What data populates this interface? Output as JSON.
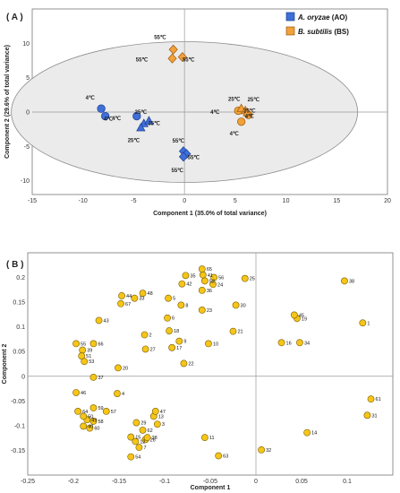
{
  "colors": {
    "ao": "#3f6fd8",
    "ao_stroke": "#1d3f95",
    "bs": "#f2a03a",
    "bs_stroke": "#9a5a12",
    "pt": "#f5c518",
    "pt_stroke": "#7a5c00",
    "ellipse_fill": "#ebebeb"
  },
  "chart_data": [
    {
      "panel": "( A )",
      "type": "scatter",
      "xlabel": "Component 1 (35.0% of total variance)",
      "ylabel": "Component 2 (29.6% of total variance)",
      "xlim": [
        -15,
        20
      ],
      "ylim": [
        -12,
        15
      ],
      "xticks": [
        -15,
        -10,
        -5,
        0,
        5,
        10,
        15,
        20
      ],
      "yticks": [
        -10,
        -5,
        0,
        5,
        10
      ],
      "legend": [
        {
          "code": "ao",
          "species": "A. oryzae",
          "abbr": " (AO)"
        },
        {
          "code": "bs",
          "species": "B. subtilis",
          "abbr": " (BS)"
        }
      ],
      "points": [
        {
          "g": "ao",
          "m": "circle",
          "x": -8.2,
          "y": 0.5,
          "label": "4℃",
          "lx": -9.3,
          "ly": 2.1
        },
        {
          "g": "ao",
          "m": "circle",
          "x": -7.8,
          "y": -0.6,
          "label": "4℃",
          "lx": -7.5,
          "ly": -1.0
        },
        {
          "g": "ao",
          "m": "circle",
          "x": -4.7,
          "y": -0.6,
          "label": "4℃",
          "lx": -6.7,
          "ly": -0.9
        },
        {
          "g": "ao",
          "m": "triangle",
          "x": -4.0,
          "y": -1.7,
          "label": "25℃",
          "lx": -4.3,
          "ly": 0.0
        },
        {
          "g": "ao",
          "m": "triangle",
          "x": -3.5,
          "y": -1.3,
          "label": "25℃",
          "lx": -3.0,
          "ly": -1.6
        },
        {
          "g": "ao",
          "m": "triangle",
          "x": -4.3,
          "y": -2.3,
          "label": "25℃",
          "lx": -5.0,
          "ly": -4.1
        },
        {
          "g": "ao",
          "m": "diamond",
          "x": -0.1,
          "y": -5.7,
          "label": "55℃",
          "lx": -0.6,
          "ly": -4.2
        },
        {
          "g": "ao",
          "m": "diamond",
          "x": 0.2,
          "y": -6.1,
          "label": "55℃",
          "lx": 0.9,
          "ly": -6.6
        },
        {
          "g": "ao",
          "m": "diamond",
          "x": -0.1,
          "y": -6.5,
          "label": "55℃",
          "lx": -0.7,
          "ly": -8.5
        },
        {
          "g": "bs",
          "m": "diamond",
          "x": -1.1,
          "y": 9.1,
          "label": "55℃",
          "lx": -2.4,
          "ly": 10.9
        },
        {
          "g": "bs",
          "m": "diamond",
          "x": -1.2,
          "y": 7.8,
          "label": "55℃",
          "lx": -4.2,
          "ly": 7.6
        },
        {
          "g": "bs",
          "m": "diamond",
          "x": -0.2,
          "y": 8.0,
          "label": "55℃",
          "lx": 0.4,
          "ly": 7.6
        },
        {
          "g": "bs",
          "m": "circle",
          "x": 5.3,
          "y": 0.2,
          "label": "4℃",
          "lx": 3.0,
          "ly": 0.0
        },
        {
          "g": "bs",
          "m": "circle",
          "x": 5.6,
          "y": -1.4,
          "label": "4℃",
          "lx": 4.9,
          "ly": -3.1
        },
        {
          "g": "bs",
          "m": "circle",
          "x": 6.3,
          "y": -0.4,
          "label": "4℃",
          "lx": 6.4,
          "ly": -0.6
        },
        {
          "g": "bs",
          "m": "triangle",
          "x": 5.6,
          "y": 0.5,
          "label": "25℃",
          "lx": 4.9,
          "ly": 1.9
        },
        {
          "g": "bs",
          "m": "triangle",
          "x": 6.0,
          "y": 0.2,
          "label": "25℃",
          "lx": 6.8,
          "ly": 1.8
        },
        {
          "g": "bs",
          "m": "triangle",
          "x": 6.2,
          "y": -0.1,
          "label": "25℃",
          "lx": 6.4,
          "ly": 0.2
        }
      ]
    },
    {
      "panel": "( B )",
      "type": "scatter",
      "xlabel": "Component 1",
      "ylabel": "Component 2",
      "xlim": [
        -0.25,
        0.15
      ],
      "ylim": [
        -0.2,
        0.25
      ],
      "xticks": [
        -0.25,
        -0.2,
        -0.15,
        -0.1,
        -0.05,
        0,
        0.05,
        0.1
      ],
      "yticks": [
        -0.15,
        -0.1,
        -0.05,
        0,
        0.05,
        0.1,
        0.15,
        0.2
      ],
      "points": [
        {
          "id": "1",
          "x": 0.117,
          "y": 0.108
        },
        {
          "id": "2",
          "x": -0.122,
          "y": 0.084
        },
        {
          "id": "3",
          "x": -0.108,
          "y": -0.097
        },
        {
          "id": "4",
          "x": -0.152,
          "y": -0.035
        },
        {
          "id": "5",
          "x": -0.096,
          "y": 0.158
        },
        {
          "id": "6",
          "x": -0.097,
          "y": 0.118
        },
        {
          "id": "7",
          "x": -0.128,
          "y": -0.144
        },
        {
          "id": "8",
          "x": -0.082,
          "y": 0.144
        },
        {
          "id": "9",
          "x": -0.084,
          "y": 0.071
        },
        {
          "id": "10",
          "x": -0.052,
          "y": 0.066
        },
        {
          "id": "11",
          "x": -0.056,
          "y": -0.124
        },
        {
          "id": "12",
          "x": -0.132,
          "y": -0.132
        },
        {
          "id": "13",
          "x": -0.112,
          "y": -0.081
        },
        {
          "id": "14",
          "x": 0.056,
          "y": -0.114
        },
        {
          "id": "15",
          "x": -0.137,
          "y": -0.123
        },
        {
          "id": "16",
          "x": 0.028,
          "y": 0.068
        },
        {
          "id": "17",
          "x": -0.092,
          "y": 0.058
        },
        {
          "id": "18",
          "x": -0.095,
          "y": 0.092
        },
        {
          "id": "19",
          "x": 0.045,
          "y": 0.117
        },
        {
          "id": "20",
          "x": -0.151,
          "y": 0.017
        },
        {
          "id": "21",
          "x": -0.025,
          "y": 0.091
        },
        {
          "id": "22",
          "x": -0.079,
          "y": 0.026
        },
        {
          "id": "23",
          "x": -0.059,
          "y": 0.134
        },
        {
          "id": "24",
          "x": -0.047,
          "y": 0.186
        },
        {
          "id": "25",
          "x": -0.012,
          "y": 0.198
        },
        {
          "id": "26",
          "x": -0.121,
          "y": -0.128
        },
        {
          "id": "27",
          "x": -0.121,
          "y": 0.055
        },
        {
          "id": "28",
          "x": -0.119,
          "y": -0.124
        },
        {
          "id": "29",
          "x": -0.131,
          "y": -0.094
        },
        {
          "id": "30",
          "x": -0.022,
          "y": 0.144
        },
        {
          "id": "31",
          "x": 0.122,
          "y": -0.079
        },
        {
          "id": "32",
          "x": 0.006,
          "y": -0.149
        },
        {
          "id": "33",
          "x": -0.133,
          "y": 0.158
        },
        {
          "id": "34",
          "x": 0.048,
          "y": 0.068
        },
        {
          "id": "35",
          "x": -0.077,
          "y": 0.204
        },
        {
          "id": "36",
          "x": -0.059,
          "y": 0.174
        },
        {
          "id": "37",
          "x": -0.178,
          "y": -0.002
        },
        {
          "id": "38",
          "x": 0.097,
          "y": 0.193
        },
        {
          "id": "39",
          "x": -0.19,
          "y": 0.053
        },
        {
          "id": "40",
          "x": -0.189,
          "y": -0.101
        },
        {
          "id": "41",
          "x": -0.058,
          "y": 0.205
        },
        {
          "id": "42",
          "x": -0.081,
          "y": 0.187
        },
        {
          "id": "43",
          "x": -0.172,
          "y": 0.113
        },
        {
          "id": "44",
          "x": -0.147,
          "y": 0.163
        },
        {
          "id": "45",
          "x": 0.042,
          "y": 0.124
        },
        {
          "id": "46",
          "x": -0.197,
          "y": -0.033
        },
        {
          "id": "47",
          "x": -0.11,
          "y": -0.071
        },
        {
          "id": "48",
          "x": -0.124,
          "y": 0.168
        },
        {
          "id": "49",
          "x": -0.185,
          "y": -0.088
        },
        {
          "id": "50",
          "x": -0.189,
          "y": -0.081
        },
        {
          "id": "51",
          "x": -0.191,
          "y": 0.041
        },
        {
          "id": "52",
          "x": -0.056,
          "y": 0.193
        },
        {
          "id": "53",
          "x": -0.188,
          "y": 0.03
        },
        {
          "id": "54",
          "x": -0.137,
          "y": -0.163
        },
        {
          "id": "55",
          "x": -0.197,
          "y": 0.066
        },
        {
          "id": "56",
          "x": -0.046,
          "y": 0.2
        },
        {
          "id": "57",
          "x": -0.164,
          "y": -0.071
        },
        {
          "id": "58",
          "x": -0.178,
          "y": -0.091
        },
        {
          "id": "59",
          "x": -0.178,
          "y": -0.064
        },
        {
          "id": "60",
          "x": -0.182,
          "y": -0.105
        },
        {
          "id": "61",
          "x": 0.126,
          "y": -0.046
        },
        {
          "id": "62",
          "x": -0.124,
          "y": -0.109
        },
        {
          "id": "63",
          "x": -0.041,
          "y": -0.161
        },
        {
          "id": "64",
          "x": -0.195,
          "y": -0.071
        },
        {
          "id": "65",
          "x": -0.059,
          "y": 0.217
        },
        {
          "id": "66",
          "x": -0.178,
          "y": 0.066
        },
        {
          "id": "67",
          "x": -0.148,
          "y": 0.147
        }
      ]
    }
  ]
}
